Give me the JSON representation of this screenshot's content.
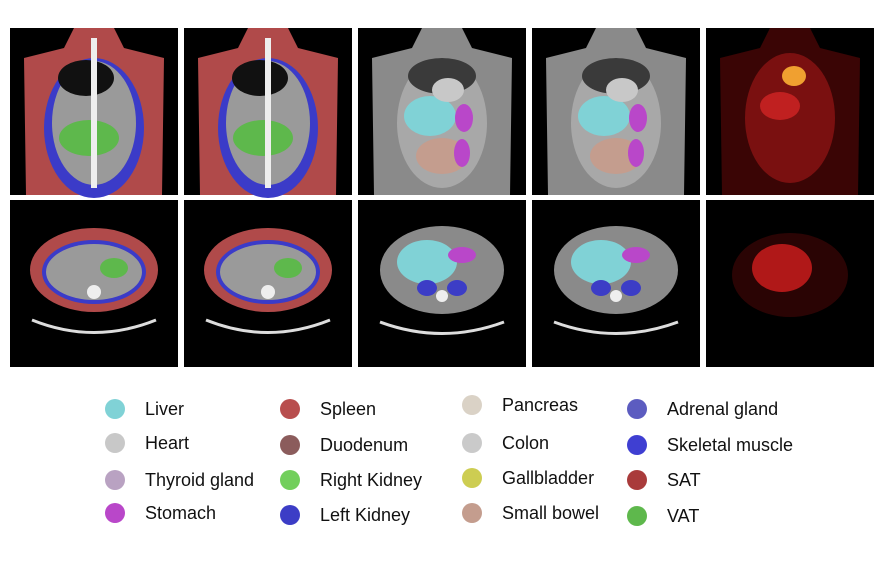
{
  "legend": {
    "items": [
      {
        "label": "Liver",
        "color": "#80d2d6"
      },
      {
        "label": "Heart",
        "color": "#c8c8c8"
      },
      {
        "label": "Thyroid gland",
        "color": "#b9a2c2"
      },
      {
        "label": "Stomach",
        "color": "#b947c9"
      },
      {
        "label": "Spleen",
        "color": "#b84e4e"
      },
      {
        "label": "Duodenum",
        "color": "#8b5c5c"
      },
      {
        "label": "Right Kidney",
        "color": "#72cf5c"
      },
      {
        "label": "Left Kidney",
        "color": "#3c3dc6"
      },
      {
        "label": "Pancreas",
        "color": "#dad2c6"
      },
      {
        "label": "Colon",
        "color": "#cacaca"
      },
      {
        "label": "Gallbladder",
        "color": "#cdcd52"
      },
      {
        "label": "Small bowel",
        "color": "#c49d8e"
      },
      {
        "label": "Adrenal gland",
        "color": "#5c5cc0"
      },
      {
        "label": "Skeletal muscle",
        "color": "#3f3fd2"
      },
      {
        "label": "SAT",
        "color": "#a93b3b"
      },
      {
        "label": "VAT",
        "color": "#5eb84c"
      }
    ]
  }
}
